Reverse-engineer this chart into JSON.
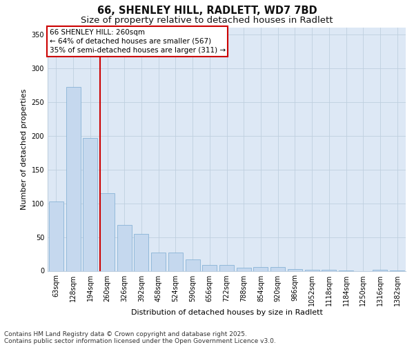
{
  "title1": "66, SHENLEY HILL, RADLETT, WD7 7BD",
  "title2": "Size of property relative to detached houses in Radlett",
  "xlabel": "Distribution of detached houses by size in Radlett",
  "ylabel": "Number of detached properties",
  "categories": [
    "63sqm",
    "128sqm",
    "194sqm",
    "260sqm",
    "326sqm",
    "392sqm",
    "458sqm",
    "524sqm",
    "590sqm",
    "656sqm",
    "722sqm",
    "788sqm",
    "854sqm",
    "920sqm",
    "986sqm",
    "1052sqm",
    "1118sqm",
    "1184sqm",
    "1250sqm",
    "1316sqm",
    "1382sqm"
  ],
  "values": [
    103,
    272,
    197,
    115,
    68,
    55,
    27,
    27,
    17,
    9,
    9,
    5,
    6,
    6,
    3,
    2,
    2,
    1,
    0,
    2,
    1
  ],
  "bar_color": "#c5d8ee",
  "bar_edge_color": "#7aaad0",
  "vline_color": "#cc0000",
  "property_bin_index": 3,
  "annotation_text": "66 SHENLEY HILL: 260sqm\n← 64% of detached houses are smaller (567)\n35% of semi-detached houses are larger (311) →",
  "annotation_box_edgecolor": "#cc0000",
  "ylim": [
    0,
    360
  ],
  "yticks": [
    0,
    50,
    100,
    150,
    200,
    250,
    300,
    350
  ],
  "background_color": "#ffffff",
  "plot_bg_color": "#dde8f5",
  "grid_color": "#bfcfdf",
  "footer_text": "Contains HM Land Registry data © Crown copyright and database right 2025.\nContains public sector information licensed under the Open Government Licence v3.0.",
  "title_fontsize": 10.5,
  "subtitle_fontsize": 9.5,
  "axis_label_fontsize": 8,
  "tick_fontsize": 7,
  "footer_fontsize": 6.5,
  "annotation_fontsize": 7.5
}
